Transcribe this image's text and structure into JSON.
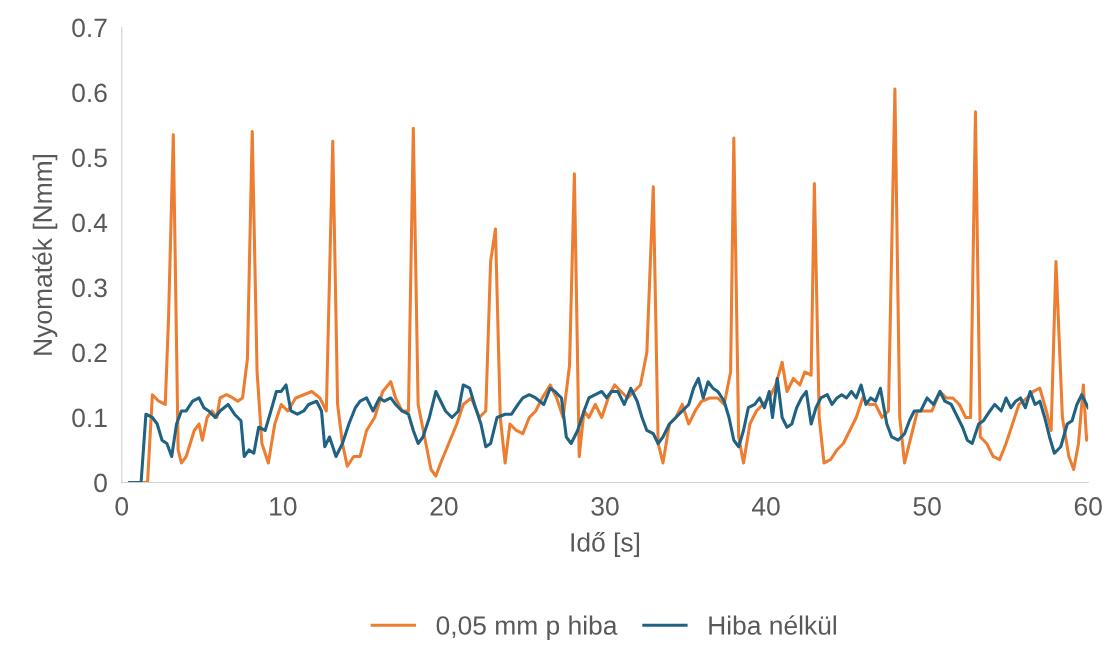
{
  "chart_data": {
    "type": "line",
    "xlabel": "Idő [s]",
    "ylabel": "Nyomaték [Nmm]",
    "xlim": [
      0,
      60
    ],
    "ylim": [
      0,
      0.7
    ],
    "xticks": [
      0,
      10,
      20,
      30,
      40,
      50,
      60
    ],
    "yticks": [
      0,
      0.1,
      0.2,
      0.3,
      0.4,
      0.5,
      0.6,
      0.7
    ],
    "grid": false,
    "legend": "bottom",
    "marker": "none",
    "line_style": "solid",
    "series": [
      {
        "name": "0,05 mm p hiba",
        "color": "#ed7d31",
        "x": [
          0.5,
          1.4,
          1.6,
          1.9,
          2.3,
          2.7,
          2.9,
          3.2,
          3.5,
          3.7,
          4.0,
          4.5,
          4.8,
          5.0,
          5.3,
          5.6,
          5.9,
          6.1,
          6.5,
          6.9,
          7.2,
          7.5,
          7.8,
          8.1,
          8.4,
          8.7,
          9.1,
          9.5,
          9.9,
          10.3,
          10.8,
          11.3,
          11.8,
          12.3,
          12.7,
          13.1,
          13.4,
          13.7,
          14.0,
          14.4,
          14.8,
          15.2,
          15.7,
          16.2,
          16.7,
          17.0,
          17.4,
          17.8,
          18.1,
          18.4,
          18.8,
          19.2,
          19.5,
          19.8,
          20.3,
          20.8,
          21.2,
          21.7,
          22.2,
          22.6,
          22.9,
          23.2,
          23.5,
          23.8,
          24.1,
          24.5,
          24.9,
          25.3,
          25.7,
          26.1,
          26.6,
          27.0,
          27.4,
          27.8,
          28.1,
          28.4,
          28.7,
          29.0,
          29.4,
          29.8,
          30.2,
          30.6,
          31.0,
          31.4,
          31.8,
          32.2,
          32.6,
          33.0,
          33.3,
          33.6,
          34.0,
          34.4,
          34.8,
          35.2,
          35.6,
          36.0,
          36.5,
          37.0,
          37.4,
          37.8,
          38.0,
          38.3,
          38.6,
          39.0,
          39.4,
          39.8,
          40.2,
          40.6,
          41.0,
          41.3,
          41.7,
          42.1,
          42.4,
          42.8,
          43.0,
          43.3,
          43.6,
          44.0,
          44.4,
          44.8,
          45.2,
          45.6,
          46.0,
          46.4,
          46.8,
          47.2,
          47.6,
          48.0,
          48.3,
          48.6,
          49.0,
          49.4,
          49.8,
          50.3,
          50.8,
          51.2,
          51.6,
          52.0,
          52.4,
          52.7,
          53.0,
          53.3,
          53.7,
          54.1,
          54.5,
          54.9,
          55.3,
          55.7,
          56.2,
          56.6,
          57.0,
          57.4,
          57.7,
          58.0,
          58.4,
          58.8,
          59.1,
          59.4,
          59.7,
          59.9,
          60.0
        ],
        "values": [
          0,
          0,
          0,
          0.135,
          0.125,
          0.12,
          0.25,
          0.535,
          0.05,
          0.03,
          0.04,
          0.08,
          0.09,
          0.065,
          0.1,
          0.11,
          0.1,
          0.13,
          0.135,
          0.13,
          0.125,
          0.13,
          0.19,
          0.54,
          0.17,
          0.06,
          0.03,
          0.09,
          0.12,
          0.11,
          0.13,
          0.135,
          0.14,
          0.13,
          0.11,
          0.525,
          0.12,
          0.06,
          0.025,
          0.04,
          0.04,
          0.08,
          0.1,
          0.14,
          0.155,
          0.13,
          0.11,
          0.11,
          0.545,
          0.12,
          0.07,
          0.02,
          0.01,
          0.03,
          0.06,
          0.09,
          0.12,
          0.13,
          0.1,
          0.11,
          0.34,
          0.39,
          0.1,
          0.03,
          0.09,
          0.08,
          0.075,
          0.1,
          0.11,
          0.13,
          0.15,
          0.13,
          0.1,
          0.18,
          0.475,
          0.04,
          0.11,
          0.1,
          0.12,
          0.1,
          0.13,
          0.15,
          0.14,
          0.13,
          0.14,
          0.15,
          0.2,
          0.455,
          0.06,
          0.03,
          0.09,
          0.1,
          0.12,
          0.09,
          0.11,
          0.125,
          0.13,
          0.13,
          0.12,
          0.17,
          0.53,
          0.07,
          0.03,
          0.09,
          0.11,
          0.12,
          0.13,
          0.15,
          0.185,
          0.14,
          0.16,
          0.15,
          0.17,
          0.165,
          0.46,
          0.1,
          0.03,
          0.035,
          0.05,
          0.06,
          0.08,
          0.1,
          0.13,
          0.12,
          0.12,
          0.1,
          0.11,
          0.605,
          0.1,
          0.03,
          0.07,
          0.11,
          0.11,
          0.11,
          0.14,
          0.13,
          0.13,
          0.12,
          0.1,
          0.1,
          0.57,
          0.07,
          0.06,
          0.04,
          0.035,
          0.06,
          0.09,
          0.12,
          0.13,
          0.14,
          0.145,
          0.11,
          0.08,
          0.34,
          0.1,
          0.04,
          0.02,
          0.06,
          0.15,
          0.065,
          0.07
        ]
      },
      {
        "name": "Hiba nélkül",
        "color": "#1f6283",
        "x": [
          0.5,
          1.2,
          1.5,
          1.9,
          2.2,
          2.5,
          2.8,
          3.1,
          3.4,
          3.7,
          4.0,
          4.4,
          4.8,
          5.1,
          5.4,
          5.8,
          6.1,
          6.6,
          7.0,
          7.4,
          7.6,
          7.9,
          8.2,
          8.5,
          8.9,
          9.2,
          9.6,
          9.9,
          10.2,
          10.5,
          10.9,
          11.3,
          11.6,
          12.1,
          12.4,
          12.6,
          12.9,
          13.3,
          13.7,
          14.1,
          14.5,
          14.8,
          15.2,
          15.6,
          16.0,
          16.3,
          16.7,
          17.0,
          17.4,
          17.8,
          18.1,
          18.4,
          18.7,
          19.1,
          19.5,
          19.8,
          20.1,
          20.5,
          20.9,
          21.2,
          21.6,
          21.9,
          22.3,
          22.6,
          22.9,
          23.3,
          23.8,
          24.2,
          24.6,
          24.9,
          25.3,
          25.7,
          26.2,
          26.6,
          26.9,
          27.3,
          27.6,
          27.9,
          28.3,
          28.7,
          29.0,
          29.4,
          29.8,
          30.1,
          30.4,
          30.8,
          31.2,
          31.6,
          32.0,
          32.3,
          32.6,
          33.0,
          33.3,
          33.6,
          34.0,
          34.4,
          34.8,
          35.2,
          35.5,
          35.8,
          36.1,
          36.4,
          36.7,
          37.0,
          37.4,
          37.7,
          38.0,
          38.3,
          38.6,
          38.9,
          39.3,
          39.6,
          39.9,
          40.2,
          40.4,
          40.7,
          41.0,
          41.3,
          41.6,
          41.9,
          42.2,
          42.5,
          42.8,
          43.1,
          43.4,
          43.8,
          44.1,
          44.4,
          44.7,
          45.0,
          45.3,
          45.6,
          45.9,
          46.2,
          46.5,
          46.8,
          47.1,
          47.5,
          47.8,
          48.2,
          48.6,
          48.9,
          49.2,
          49.6,
          50.0,
          50.4,
          50.8,
          51.1,
          51.5,
          51.9,
          52.2,
          52.5,
          52.8,
          53.2,
          53.5,
          53.9,
          54.2,
          54.6,
          54.9,
          55.2,
          55.5,
          55.8,
          56.1,
          56.4,
          56.7,
          57.0,
          57.3,
          57.6,
          57.9,
          58.3,
          58.7,
          59.0,
          59.3,
          59.6,
          59.8,
          60.0
        ],
        "values": [
          0,
          0,
          0.105,
          0.1,
          0.09,
          0.065,
          0.06,
          0.04,
          0.09,
          0.11,
          0.11,
          0.125,
          0.13,
          0.115,
          0.11,
          0.1,
          0.11,
          0.12,
          0.105,
          0.095,
          0.04,
          0.05,
          0.045,
          0.085,
          0.08,
          0.105,
          0.14,
          0.14,
          0.15,
          0.11,
          0.105,
          0.11,
          0.12,
          0.125,
          0.11,
          0.055,
          0.07,
          0.04,
          0.06,
          0.09,
          0.115,
          0.125,
          0.13,
          0.11,
          0.13,
          0.125,
          0.13,
          0.12,
          0.11,
          0.105,
          0.08,
          0.06,
          0.07,
          0.1,
          0.14,
          0.125,
          0.11,
          0.1,
          0.11,
          0.15,
          0.145,
          0.12,
          0.09,
          0.055,
          0.06,
          0.1,
          0.105,
          0.105,
          0.12,
          0.13,
          0.135,
          0.13,
          0.12,
          0.145,
          0.14,
          0.13,
          0.07,
          0.06,
          0.08,
          0.11,
          0.13,
          0.135,
          0.14,
          0.13,
          0.14,
          0.14,
          0.12,
          0.145,
          0.125,
          0.1,
          0.08,
          0.075,
          0.06,
          0.07,
          0.09,
          0.1,
          0.11,
          0.12,
          0.145,
          0.16,
          0.13,
          0.155,
          0.145,
          0.14,
          0.125,
          0.1,
          0.065,
          0.055,
          0.08,
          0.115,
          0.12,
          0.13,
          0.115,
          0.14,
          0.1,
          0.16,
          0.1,
          0.085,
          0.09,
          0.115,
          0.13,
          0.14,
          0.09,
          0.115,
          0.13,
          0.135,
          0.12,
          0.13,
          0.135,
          0.13,
          0.14,
          0.13,
          0.15,
          0.12,
          0.13,
          0.125,
          0.145,
          0.09,
          0.07,
          0.065,
          0.075,
          0.095,
          0.11,
          0.11,
          0.13,
          0.12,
          0.14,
          0.125,
          0.12,
          0.1,
          0.085,
          0.065,
          0.06,
          0.09,
          0.095,
          0.11,
          0.12,
          0.11,
          0.13,
          0.115,
          0.125,
          0.13,
          0.115,
          0.14,
          0.12,
          0.125,
          0.1,
          0.07,
          0.045,
          0.055,
          0.09,
          0.095,
          0.12,
          0.135,
          0.125,
          0.115
        ]
      }
    ]
  }
}
